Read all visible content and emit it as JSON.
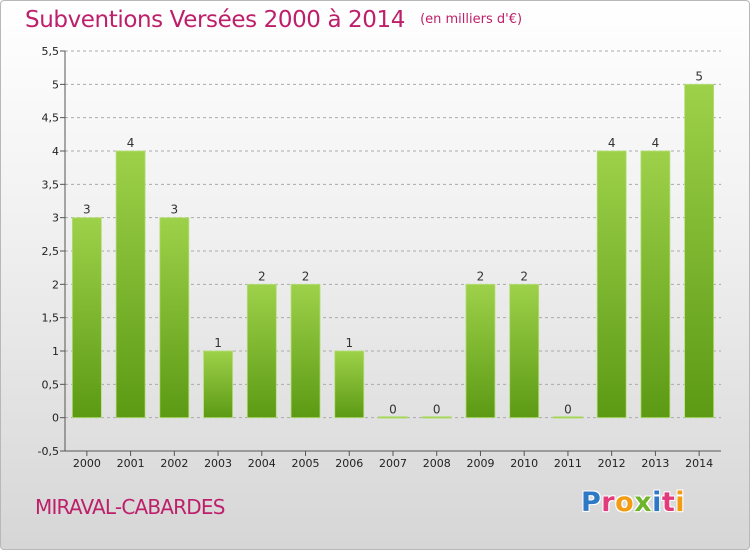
{
  "header": {
    "title": "Subventions Versées 2000 à 2014",
    "subtitle": "(en milliers d'€)"
  },
  "footer": {
    "commune": "MIRAVAL-CABARDES",
    "logo_text": "Proxiti",
    "logo_letters": [
      {
        "char": "P",
        "color": "#2e79c6"
      },
      {
        "char": "r",
        "color": "#e23b7b"
      },
      {
        "char": "o",
        "color": "#f39c12"
      },
      {
        "char": "x",
        "color": "#6fb52b"
      },
      {
        "char": "i",
        "color": "#2e79c6"
      },
      {
        "char": "t",
        "color": "#e23b7b"
      },
      {
        "char": "i",
        "color": "#f39c12"
      }
    ]
  },
  "colors": {
    "title": "#bd1f6a",
    "bar_top": "#9ed14a",
    "bar_bottom": "#5c9a14",
    "grid": "#aaaaaa"
  },
  "chart_data": {
    "type": "bar",
    "title": "Subventions Versées 2000 à 2014",
    "subtitle": "(en milliers d'€)",
    "categories": [
      "2000",
      "2001",
      "2002",
      "2003",
      "2004",
      "2005",
      "2006",
      "2007",
      "2008",
      "2009",
      "2010",
      "2011",
      "2012",
      "2013",
      "2014"
    ],
    "values": [
      3,
      4,
      3,
      1,
      2,
      2,
      1,
      0,
      0,
      2,
      2,
      0,
      4,
      4,
      5
    ],
    "value_labels": [
      "3",
      "4",
      "3",
      "1",
      "2",
      "2",
      "1",
      "0",
      "0",
      "2",
      "2",
      "0",
      "4",
      "4",
      "5"
    ],
    "xlabel": "",
    "ylabel": "",
    "ylim": [
      -0.5,
      5.5
    ],
    "yticks": [
      -0.5,
      0,
      0.5,
      1,
      1.5,
      2,
      2.5,
      3,
      3.5,
      4,
      4.5,
      5,
      5.5
    ],
    "ytick_labels": [
      "-0,5",
      "0",
      "0,5",
      "1",
      "1,5",
      "2",
      "2,5",
      "3",
      "3,5",
      "4",
      "4,5",
      "5",
      "5,5"
    ],
    "grid": "horizontal dashed"
  }
}
